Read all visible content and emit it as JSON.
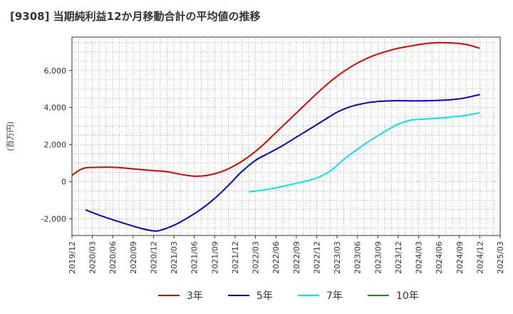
{
  "chart_data": {
    "type": "line",
    "title": "[9308]  当期純利益12か月移動合計の平均値の推移",
    "ylabel": "(百万円)",
    "xlabel": "",
    "ylim": [
      -2900,
      7800
    ],
    "yticks": [
      -2000,
      0,
      2000,
      4000,
      6000
    ],
    "ytick_labels": [
      "-2,000",
      "0",
      "2,000",
      "4,000",
      "6,000"
    ],
    "xlim": [
      "2019-12",
      "2025-03"
    ],
    "xtick_labels": [
      "2019/12",
      "2020/03",
      "2020/06",
      "2020/09",
      "2020/12",
      "2021/03",
      "2021/06",
      "2021/09",
      "2021/12",
      "2022/03",
      "2022/06",
      "2022/09",
      "2022/12",
      "2023/03",
      "2023/06",
      "2023/09",
      "2023/12",
      "2024/03",
      "2024/06",
      "2024/09",
      "2024/12",
      "2025/03"
    ],
    "grid": true,
    "legend_position": "bottom",
    "series": [
      {
        "name": "3年",
        "color": "#dd0000",
        "points": [
          [
            "2019-12",
            350
          ],
          [
            "2020-01",
            600
          ],
          [
            "2020-02",
            750
          ],
          [
            "2020-04",
            780
          ],
          [
            "2020-06",
            780
          ],
          [
            "2020-08",
            730
          ],
          [
            "2020-10",
            660
          ],
          [
            "2020-12",
            600
          ],
          [
            "2021-02",
            540
          ],
          [
            "2021-04",
            400
          ],
          [
            "2021-06",
            300
          ],
          [
            "2021-08",
            350
          ],
          [
            "2021-10",
            540
          ],
          [
            "2021-12",
            880
          ],
          [
            "2022-02",
            1350
          ],
          [
            "2022-04",
            1950
          ],
          [
            "2022-06",
            2650
          ],
          [
            "2022-08",
            3350
          ],
          [
            "2022-10",
            4050
          ],
          [
            "2022-12",
            4750
          ],
          [
            "2023-02",
            5400
          ],
          [
            "2023-04",
            5950
          ],
          [
            "2023-06",
            6400
          ],
          [
            "2023-08",
            6750
          ],
          [
            "2023-10",
            7000
          ],
          [
            "2023-12",
            7200
          ],
          [
            "2024-02",
            7330
          ],
          [
            "2024-04",
            7450
          ],
          [
            "2024-06",
            7500
          ],
          [
            "2024-08",
            7480
          ],
          [
            "2024-10",
            7400
          ],
          [
            "2024-12",
            7200
          ]
        ]
      },
      {
        "name": "5年",
        "color": "#0000cc",
        "points": [
          [
            "2020-02",
            -1520
          ],
          [
            "2020-04",
            -1800
          ],
          [
            "2020-06",
            -2050
          ],
          [
            "2020-08",
            -2280
          ],
          [
            "2020-10",
            -2500
          ],
          [
            "2020-12",
            -2650
          ],
          [
            "2021-01",
            -2620
          ],
          [
            "2021-03",
            -2350
          ],
          [
            "2021-05",
            -1950
          ],
          [
            "2021-07",
            -1480
          ],
          [
            "2021-09",
            -900
          ],
          [
            "2021-11",
            -200
          ],
          [
            "2022-01",
            550
          ],
          [
            "2022-03",
            1150
          ],
          [
            "2022-05",
            1550
          ],
          [
            "2022-07",
            1950
          ],
          [
            "2022-09",
            2400
          ],
          [
            "2022-11",
            2850
          ],
          [
            "2023-01",
            3300
          ],
          [
            "2023-03",
            3750
          ],
          [
            "2023-05",
            4050
          ],
          [
            "2023-07",
            4230
          ],
          [
            "2023-09",
            4330
          ],
          [
            "2023-12",
            4370
          ],
          [
            "2024-03",
            4360
          ],
          [
            "2024-06",
            4390
          ],
          [
            "2024-09",
            4470
          ],
          [
            "2024-12",
            4700
          ]
        ]
      },
      {
        "name": "7年",
        "color": "#00e5ee",
        "points": [
          [
            "2022-02",
            -540
          ],
          [
            "2022-04",
            -460
          ],
          [
            "2022-06",
            -330
          ],
          [
            "2022-08",
            -170
          ],
          [
            "2022-10",
            0
          ],
          [
            "2022-12",
            200
          ],
          [
            "2023-02",
            580
          ],
          [
            "2023-04",
            1200
          ],
          [
            "2023-06",
            1750
          ],
          [
            "2023-08",
            2250
          ],
          [
            "2023-10",
            2700
          ],
          [
            "2023-12",
            3100
          ],
          [
            "2024-02",
            3330
          ],
          [
            "2024-04",
            3380
          ],
          [
            "2024-06",
            3430
          ],
          [
            "2024-08",
            3500
          ],
          [
            "2024-10",
            3580
          ],
          [
            "2024-12",
            3720
          ]
        ]
      },
      {
        "name": "10年",
        "color": "#228822",
        "points": []
      }
    ]
  }
}
